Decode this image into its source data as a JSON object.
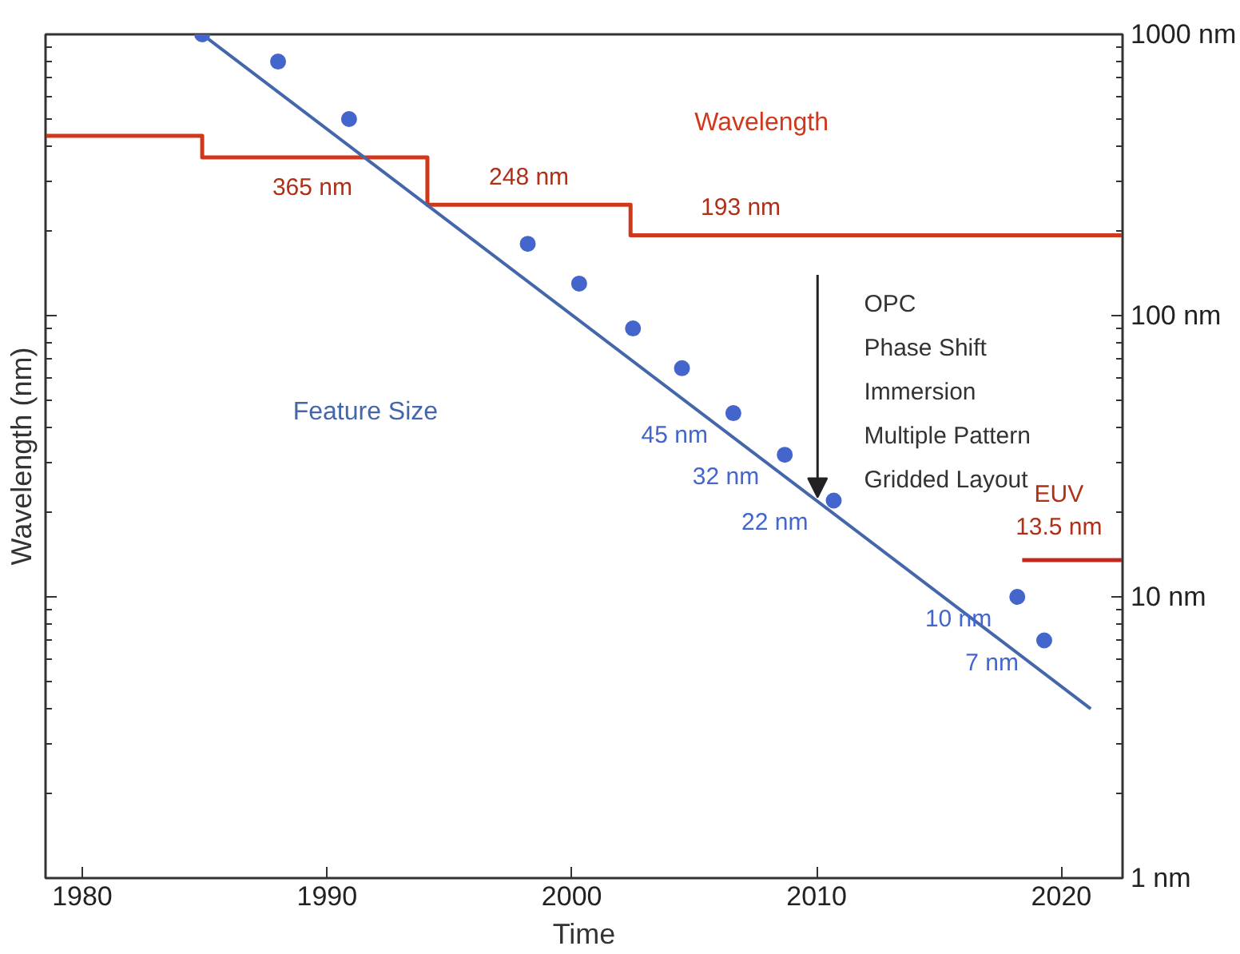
{
  "chart_data": {
    "type": "line",
    "xlabel": "Time",
    "ylabel": "Wavelength (nm)",
    "log": "y",
    "grid": false,
    "legend": false,
    "xlim": [
      1978.5,
      2022.5
    ],
    "xticks": [
      1980,
      1990,
      2000,
      2010,
      2020
    ],
    "ylim": [
      1,
      1000
    ],
    "yticks": [
      {
        "value": 1,
        "label": "1 nm"
      },
      {
        "value": 10,
        "label": "10 nm"
      },
      {
        "value": 100,
        "label": "100 nm"
      },
      {
        "value": 1000,
        "label": "1000 nm"
      }
    ],
    "series": [
      {
        "name": "Wavelength",
        "type": "step",
        "color": "#d0381c",
        "x": [
          1978.5,
          1984.9,
          1994.1,
          2002.4,
          2022.5
        ],
        "values": [
          436,
          365,
          248,
          193,
          193
        ]
      },
      {
        "type": "step",
        "color": "#c0281c",
        "x": [
          2018.4,
          2022.5
        ],
        "values": [
          13.5,
          13.5
        ]
      },
      {
        "name": "Feature Size",
        "color": "#4466aa",
        "x": [
          1984.9,
          2021.2
        ],
        "values": [
          1000,
          4
        ]
      },
      {
        "type": "scatter",
        "marker": "circle",
        "color": "#4466cc",
        "x": [
          1984.9,
          1988.0,
          1990.9,
          1998.2,
          2000.3,
          2002.5,
          2004.5,
          2006.6,
          2008.7,
          2010.7,
          2018.2,
          2019.3
        ],
        "values": [
          1000,
          800,
          500,
          180,
          130,
          90,
          65,
          45,
          32,
          22,
          10,
          7
        ],
        "value_labels": [
          null,
          null,
          null,
          null,
          null,
          null,
          null,
          "45 nm",
          "32 nm",
          "22 nm",
          "10 nm",
          "7 nm"
        ]
      }
    ],
    "annotations": [
      "365 nm",
      "248 nm",
      "193 nm",
      "EUV\n13.5 nm",
      "OPC",
      "Phase Shift",
      "Immersion",
      "Multiple Pattern",
      "Gridded Layout"
    ]
  }
}
